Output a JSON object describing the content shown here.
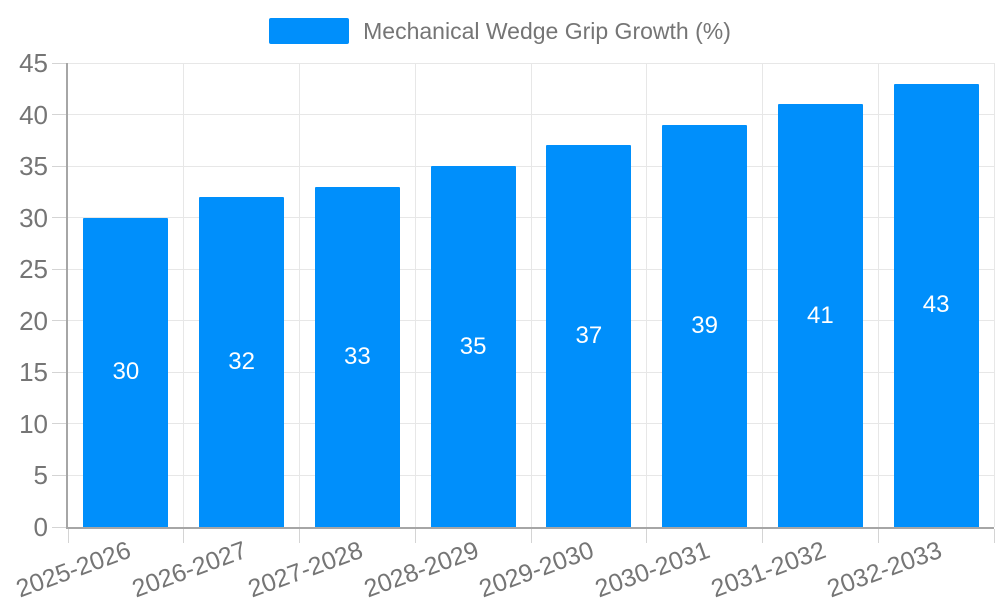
{
  "chart_data": {
    "type": "bar",
    "title": "Mechanical Wedge Grip Growth (%)",
    "series_name": "Mechanical Wedge Grip Growth (%)",
    "categories": [
      "2025-2026",
      "2026-2027",
      "2027-2028",
      "2028-2029",
      "2029-2030",
      "2030-2031",
      "2031-2032",
      "2032-2033"
    ],
    "values": [
      30,
      32,
      33,
      35,
      37,
      39,
      41,
      43
    ],
    "data_labels": [
      "30",
      "32",
      "33",
      "35",
      "37",
      "39",
      "41",
      "43"
    ],
    "xlabel": "",
    "ylabel": "",
    "ylim": [
      0,
      45
    ],
    "ytick_step": 5,
    "yticks": [
      0,
      5,
      10,
      15,
      20,
      25,
      30,
      35,
      40,
      45
    ],
    "legend_position": "top-center",
    "grid": "horizontal-and-vertical",
    "x_label_rotation_deg": -20,
    "colors": {
      "bar": "#008FFB",
      "data_label": "#ffffff",
      "axis_label": "#757575",
      "legend_text": "#757575",
      "gridline": "#e7e7e7",
      "axis_line": "#a6a6a6",
      "tick": "#d4d4d4",
      "background": "#ffffff"
    }
  }
}
